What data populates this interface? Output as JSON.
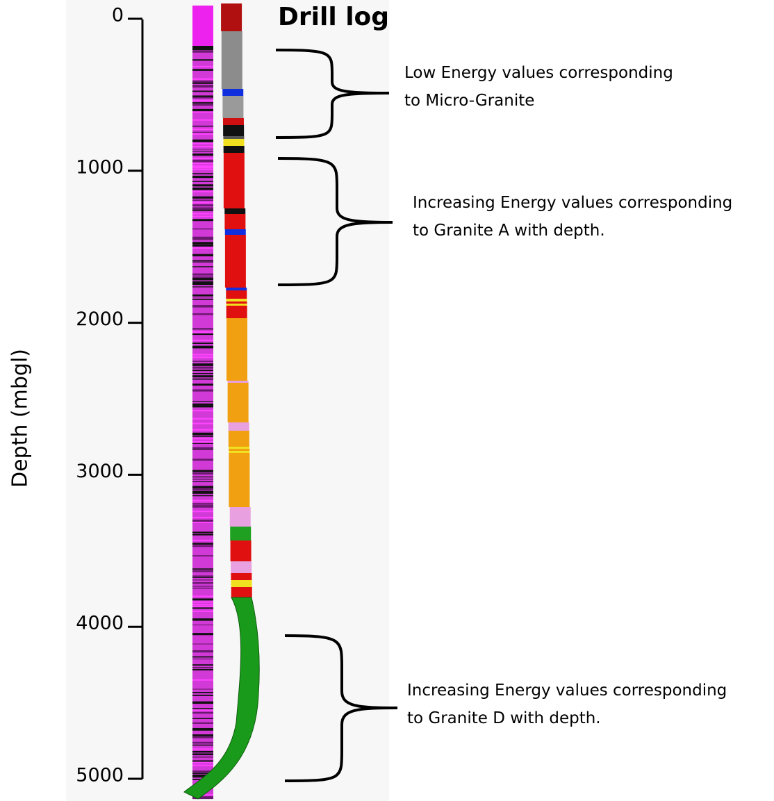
{
  "title": "Drill log",
  "axis": {
    "label": "Depth (mbgl)",
    "ticks": [
      "0",
      "1000",
      "2000",
      "3000",
      "4000",
      "5000"
    ]
  },
  "annotations": [
    {
      "lines": [
        "Low Energy values corresponding",
        "to Micro-Granite"
      ]
    },
    {
      "lines": [
        "Increasing Energy values corresponding",
        "to Granite A with depth."
      ]
    },
    {
      "lines": [
        "Increasing Energy values corresponding",
        "to Granite D with depth."
      ]
    }
  ]
}
